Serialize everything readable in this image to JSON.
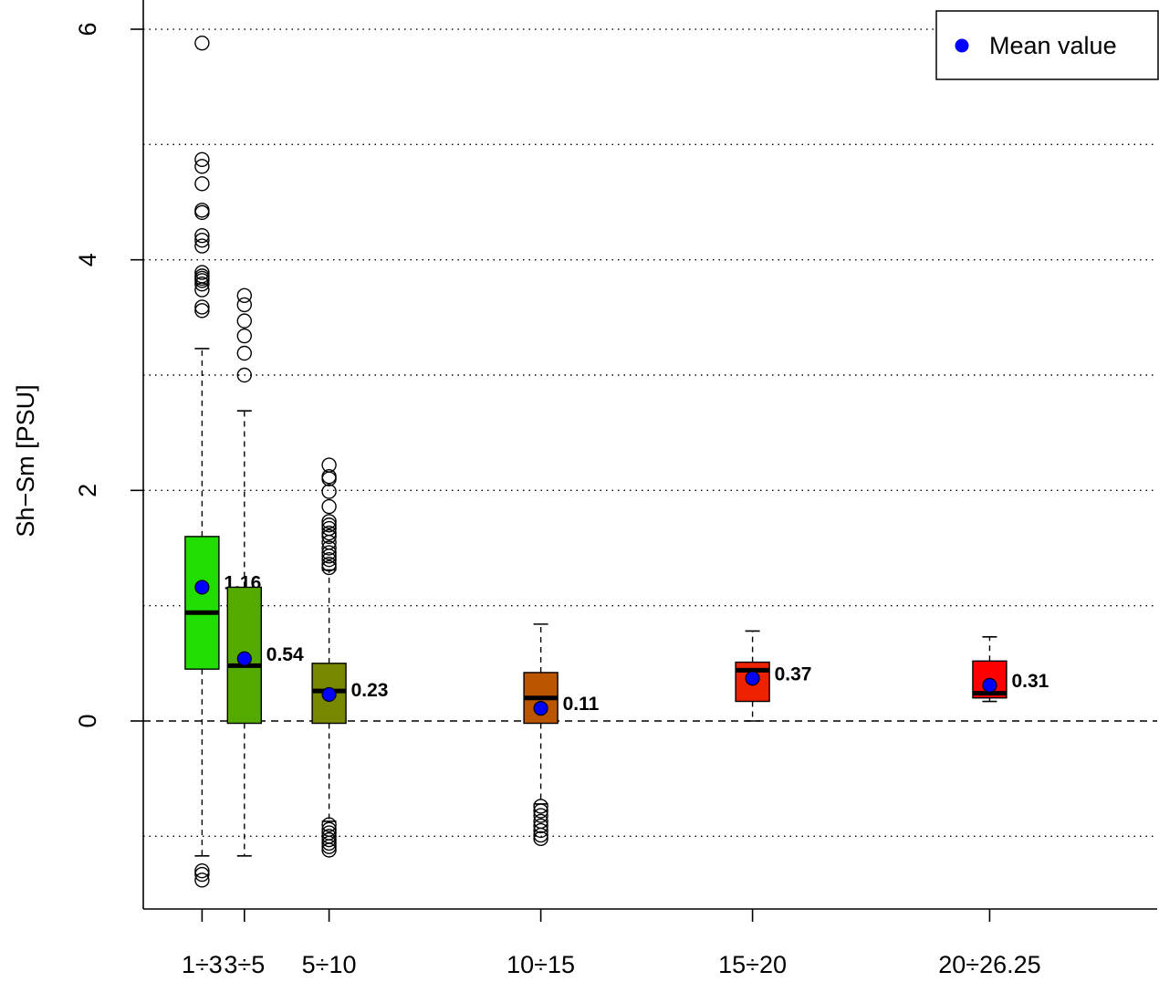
{
  "chart_data": {
    "type": "boxplot",
    "title": "",
    "xlabel": "",
    "ylabel": "Sh−Sm [PSU]",
    "ylim": [
      -1.65,
      6.25
    ],
    "y_ticks": [
      0,
      2,
      4,
      6
    ],
    "y_tick_labels": [
      "0",
      "2",
      "4",
      "6"
    ],
    "grid": {
      "y_dotted_lines": [
        -1,
        1,
        3,
        5,
        6,
        4,
        2
      ],
      "reference_dashed_line": 0
    },
    "legend": {
      "position": "top-right",
      "entries": [
        {
          "label": "Mean value",
          "color": "#0000ff"
        }
      ]
    },
    "categories": [
      {
        "label": "1÷3",
        "x": 2,
        "color": "#22dd00",
        "whisker_low": -1.17,
        "q1": 0.45,
        "median": 0.94,
        "q3": 1.6,
        "whisker_high": 3.23,
        "mean": 1.16,
        "mean_label": "1.16",
        "outliers": [
          5.88,
          4.87,
          4.81,
          4.66,
          4.43,
          4.41,
          4.21,
          4.17,
          4.12,
          3.89,
          3.86,
          3.84,
          3.82,
          3.79,
          3.74,
          3.59,
          3.56,
          -1.3,
          -1.33,
          -1.38
        ]
      },
      {
        "label": "3÷5",
        "x": 3,
        "color": "#55aa00",
        "whisker_low": -1.17,
        "q1": -0.02,
        "median": 0.48,
        "q3": 1.16,
        "whisker_high": 2.69,
        "mean": 0.54,
        "mean_label": "0.54",
        "outliers": [
          3.69,
          3.61,
          3.47,
          3.34,
          3.19,
          3.0
        ]
      },
      {
        "label": "5÷10",
        "x": 5,
        "color": "#778800",
        "whisker_low": -0.87,
        "q1": -0.02,
        "median": 0.26,
        "q3": 0.5,
        "whisker_high": 1.31,
        "mean": 0.23,
        "mean_label": "0.23",
        "outliers": [
          2.22,
          2.12,
          2.1,
          1.99,
          1.86,
          1.73,
          1.7,
          1.67,
          1.63,
          1.6,
          1.55,
          1.5,
          1.46,
          1.43,
          1.4,
          1.36,
          1.33,
          -0.9,
          -0.94,
          -0.97,
          -1.0,
          -1.03,
          -1.06,
          -1.09,
          -1.12
        ]
      },
      {
        "label": "10÷15",
        "x": 10,
        "color": "#bb5500",
        "whisker_low": -0.72,
        "q1": -0.02,
        "median": 0.2,
        "q3": 0.42,
        "whisker_high": 0.84,
        "mean": 0.11,
        "mean_label": "0.11",
        "outliers": [
          -0.74,
          -0.78,
          -0.82,
          -0.87,
          -0.91,
          -0.95,
          -0.99,
          -1.02
        ]
      },
      {
        "label": "15÷20",
        "x": 15,
        "color": "#ee2200",
        "whisker_low": 0.0,
        "q1": 0.17,
        "median": 0.44,
        "q3": 0.51,
        "whisker_high": 0.78,
        "mean": 0.37,
        "mean_label": "0.37",
        "outliers": []
      },
      {
        "label": "20÷26.25",
        "x": 20.6,
        "color": "#ff0000",
        "whisker_low": 0.17,
        "q1": 0.2,
        "median": 0.24,
        "q3": 0.52,
        "whisker_high": 0.73,
        "mean": 0.31,
        "mean_label": "0.31",
        "outliers": []
      }
    ],
    "x_positions_note": ""
  }
}
